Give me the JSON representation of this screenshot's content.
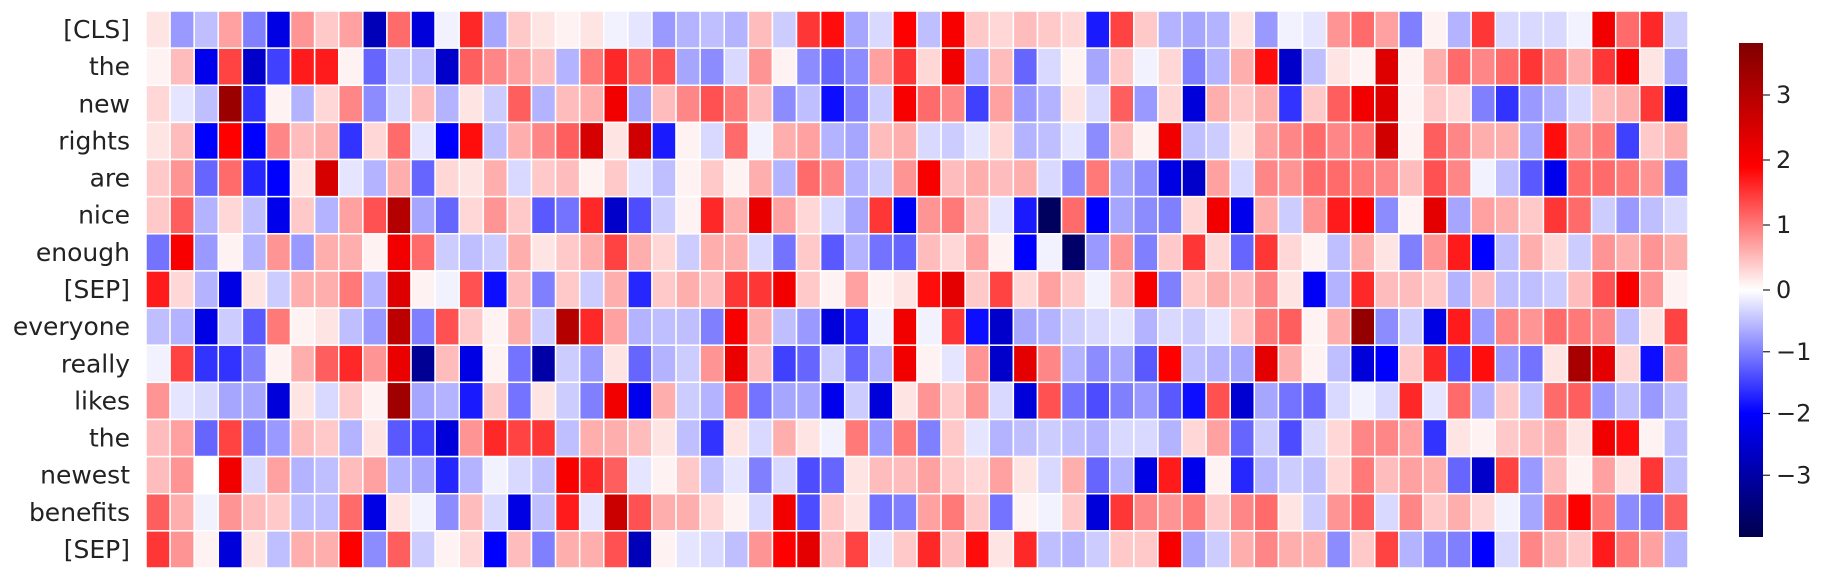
{
  "chart_data": {
    "type": "heatmap",
    "title": "",
    "xlabel": "",
    "ylabel": "",
    "rows": [
      "[CLS]",
      "the",
      "new",
      "rights",
      "are",
      "nice",
      "enough",
      "[SEP]",
      "everyone",
      "really",
      "likes",
      "the",
      "newest",
      "benefits",
      "[SEP]"
    ],
    "n_columns": 64,
    "x_tick_labels": "none",
    "colormap": "seismic",
    "vmin": -4,
    "vmax": 3.8,
    "colorbar": {
      "ticks": [
        3,
        2,
        1,
        0,
        -1,
        -2,
        -3
      ],
      "tick_labels": [
        "3",
        "2",
        "1",
        "0",
        "−1",
        "−2",
        "−3"
      ],
      "position": "right"
    },
    "values": [
      [
        0.2,
        -0.8,
        -0.5,
        0.7,
        -1.0,
        -2.3,
        0.8,
        0.4,
        0.7,
        -2.8,
        1.1,
        -2.4,
        -0.1,
        1.6,
        -0.7,
        0.4,
        0.2,
        0.1,
        0.2,
        -0.1,
        -0.2,
        -0.8,
        -0.6,
        -0.5,
        -0.6,
        0.5,
        -0.4,
        1.5,
        1.8,
        -0.7,
        -0.3,
        1.9,
        -0.5,
        2.0,
        0.4,
        0.3,
        0.5,
        0.4,
        0.3,
        -1.8,
        1.4,
        0.4,
        -0.6,
        -0.7,
        -0.6,
        0.2,
        -0.8,
        -0.1,
        -0.2,
        0.8,
        1.1,
        0.7,
        -1.0,
        0.1,
        -0.6,
        1.5,
        -0.3,
        -0.3,
        -0.3,
        -0.1,
        2.1,
        1.1,
        1.6,
        -0.4
      ],
      [
        0.1,
        0.5,
        -2.2,
        1.4,
        -2.6,
        -1.5,
        1.7,
        1.7,
        0.1,
        -1.2,
        -0.4,
        -0.5,
        -2.6,
        1.2,
        0.9,
        0.7,
        0.5,
        -0.6,
        1.0,
        1.6,
        1.1,
        1.3,
        -0.7,
        -0.9,
        -0.3,
        0.8,
        0.1,
        -0.9,
        -1.2,
        -0.9,
        0.7,
        1.5,
        0.3,
        2.1,
        -0.6,
        0.5,
        -1.2,
        -0.3,
        0.1,
        -0.7,
        0.4,
        -0.1,
        0.3,
        -1.0,
        -0.6,
        0.6,
        1.8,
        -2.6,
        -0.5,
        0.2,
        0.1,
        2.4,
        0.1,
        0.6,
        1.1,
        0.9,
        1.1,
        1.5,
        1.0,
        0.6,
        1.5,
        2.0,
        0.2,
        -0.7
      ],
      [
        0.3,
        -0.2,
        -0.5,
        3.4,
        -1.6,
        0.1,
        -0.6,
        0.3,
        0.9,
        -0.9,
        -0.3,
        0.5,
        -0.6,
        0.2,
        -0.4,
        1.2,
        -0.6,
        0.5,
        0.6,
        2.1,
        -0.7,
        0.5,
        0.9,
        1.3,
        1.0,
        0.5,
        -0.9,
        -0.5,
        -1.9,
        -1.0,
        -0.4,
        2.0,
        1.1,
        0.9,
        -1.5,
        0.7,
        -0.8,
        -0.6,
        0.2,
        -0.3,
        1.2,
        -0.8,
        0.3,
        -2.4,
        0.6,
        0.4,
        0.6,
        -1.6,
        0.4,
        1.2,
        2.1,
        2.4,
        0.1,
        0.4,
        0.3,
        -1.0,
        -1.6,
        -0.8,
        -0.6,
        -0.3,
        0.5,
        0.6,
        1.5,
        -2.3
      ],
      [
        0.2,
        0.5,
        -2.0,
        1.9,
        -2.0,
        0.9,
        0.5,
        0.6,
        -1.6,
        0.3,
        1.1,
        -0.2,
        -2.0,
        1.8,
        -0.5,
        0.6,
        0.9,
        1.2,
        2.5,
        0.2,
        2.6,
        -1.8,
        0.1,
        -0.3,
        1.1,
        -0.1,
        0.6,
        0.7,
        -0.6,
        -0.7,
        0.5,
        0.6,
        -0.3,
        -0.4,
        -0.2,
        0.3,
        -0.6,
        -0.5,
        -0.2,
        -0.9,
        0.5,
        0.1,
        2.1,
        -0.5,
        -0.4,
        0.2,
        0.7,
        0.9,
        1.1,
        0.9,
        1.0,
        2.6,
        0.1,
        1.2,
        0.9,
        0.6,
        0.6,
        -0.7,
        1.8,
        0.8,
        1.0,
        -1.5,
        0.4,
        0.6
      ],
      [
        0.4,
        0.8,
        -1.2,
        1.1,
        -1.7,
        -2.0,
        0.2,
        2.5,
        -0.2,
        -0.6,
        0.6,
        -1.2,
        0.3,
        0.2,
        0.6,
        -0.3,
        0.4,
        0.5,
        0.1,
        0.4,
        -0.2,
        -0.5,
        0.1,
        0.4,
        0.1,
        0.6,
        -0.6,
        1.1,
        0.9,
        -0.6,
        -0.4,
        0.8,
        2.0,
        0.5,
        0.6,
        0.5,
        0.6,
        -0.3,
        -0.9,
        1.0,
        -0.7,
        -0.9,
        -2.3,
        -2.6,
        0.7,
        -0.3,
        0.9,
        0.8,
        1.1,
        1.1,
        1.0,
        0.9,
        0.5,
        1.3,
        0.9,
        -0.1,
        -0.5,
        -1.3,
        -2.2,
        1.1,
        1.1,
        1.0,
        0.8,
        -1.0
      ],
      [
        0.4,
        1.2,
        -0.6,
        0.3,
        -0.5,
        -2.2,
        0.4,
        -0.6,
        0.7,
        1.3,
        3.0,
        -0.7,
        -1.2,
        0.3,
        0.8,
        0.4,
        -1.3,
        -1.1,
        1.6,
        -2.6,
        -1.4,
        -0.4,
        0.1,
        1.6,
        0.6,
        2.2,
        0.7,
        0.3,
        -0.3,
        -0.7,
        1.5,
        -2.1,
        0.8,
        1.0,
        0.5,
        -0.2,
        -1.8,
        -3.8,
        1.1,
        -2.0,
        -0.7,
        -0.9,
        -1.0,
        0.3,
        2.1,
        -2.2,
        0.6,
        -0.4,
        0.8,
        1.7,
        1.9,
        -0.9,
        0.1,
        2.3,
        -0.7,
        0.7,
        0.6,
        0.4,
        1.5,
        1.1,
        -0.4,
        -0.8,
        -0.5,
        -0.3
      ],
      [
        -1.1,
        2.0,
        -0.8,
        0.1,
        -0.6,
        0.8,
        -0.8,
        0.6,
        0.6,
        0.1,
        2.1,
        1.1,
        -0.4,
        -0.5,
        -0.4,
        0.6,
        0.2,
        0.4,
        0.6,
        1.4,
        0.6,
        0.3,
        -0.4,
        0.6,
        0.6,
        -0.3,
        -1.1,
        0.4,
        -1.3,
        -0.6,
        -1.1,
        -1.2,
        0.5,
        0.3,
        0.7,
        0.1,
        -2.0,
        -0.1,
        -3.7,
        -0.8,
        0.8,
        -1.0,
        0.4,
        1.5,
        0.3,
        -1.2,
        1.5,
        0.3,
        0.1,
        -0.5,
        0.6,
        0.2,
        -1.0,
        0.8,
        1.7,
        -2.0,
        -0.5,
        0.6,
        0.3,
        -0.4,
        0.8,
        0.6,
        0.8,
        0.6
      ],
      [
        1.7,
        0.3,
        -0.6,
        -2.3,
        0.2,
        -0.4,
        0.6,
        0.6,
        1.0,
        -0.6,
        2.4,
        0.1,
        -0.1,
        1.3,
        -1.9,
        0.5,
        -1.0,
        0.4,
        -0.4,
        0.6,
        -1.7,
        0.4,
        0.6,
        0.5,
        1.5,
        1.5,
        2.1,
        0.4,
        0.1,
        0.7,
        0.1,
        0.2,
        1.8,
        2.3,
        0.4,
        1.4,
        0.3,
        0.7,
        0.4,
        -0.1,
        0.5,
        2.0,
        -1.0,
        0.4,
        0.6,
        0.5,
        0.9,
        0.2,
        -2.1,
        -0.6,
        1.6,
        0.5,
        0.5,
        0.4,
        -0.6,
        0.5,
        -0.5,
        -0.5,
        -0.4,
        0.5,
        1.3,
        2.0,
        0.8,
        0.1
      ],
      [
        -0.5,
        -0.6,
        -2.3,
        -0.4,
        -1.3,
        1.0,
        0.1,
        0.2,
        -0.5,
        -0.8,
        2.9,
        -1.0,
        1.3,
        0.4,
        0.1,
        0.6,
        -0.4,
        3.0,
        1.6,
        0.7,
        -0.6,
        -0.5,
        -0.5,
        -1.0,
        2.0,
        0.6,
        -0.5,
        -0.8,
        -2.4,
        -1.7,
        -0.1,
        2.1,
        -0.1,
        1.5,
        -1.9,
        -2.6,
        -0.7,
        -0.6,
        -0.4,
        -0.3,
        -0.2,
        -0.6,
        -0.3,
        -0.4,
        -0.2,
        0.4,
        1.0,
        1.2,
        0.1,
        0.6,
        3.5,
        -0.9,
        -0.4,
        -2.3,
        1.7,
        -0.8,
        0.9,
        0.8,
        1.1,
        1.0,
        0.9,
        -0.5,
        0.2,
        1.4
      ],
      [
        -0.1,
        1.4,
        -1.6,
        -1.6,
        -1.0,
        0.1,
        0.6,
        1.2,
        1.6,
        0.8,
        2.2,
        -3.2,
        0.5,
        -2.3,
        0.1,
        -1.1,
        -3.0,
        -0.4,
        -0.8,
        0.2,
        -1.2,
        -0.6,
        -0.4,
        0.8,
        2.2,
        0.5,
        -1.5,
        -1.2,
        -0.4,
        -1.2,
        -0.6,
        2.1,
        0.1,
        -0.2,
        0.8,
        -2.6,
        2.3,
        0.9,
        -0.6,
        -0.9,
        -0.7,
        -1.3,
        1.9,
        -0.5,
        -0.6,
        -0.7,
        2.3,
        0.6,
        0.1,
        -0.5,
        -2.4,
        -2.0,
        0.4,
        1.6,
        -1.3,
        1.8,
        -0.8,
        -1.1,
        0.2,
        3.2,
        2.3,
        0.3,
        -1.9,
        0.8
      ],
      [
        0.8,
        -0.2,
        -0.3,
        -0.7,
        -0.7,
        -2.4,
        0.2,
        -0.3,
        0.4,
        0.1,
        3.3,
        -0.7,
        -0.6,
        -1.8,
        0.4,
        -1.1,
        0.2,
        -0.4,
        -1.0,
        2.1,
        -2.2,
        0.6,
        -0.4,
        -0.6,
        1.1,
        -1.1,
        -0.7,
        -0.7,
        -2.2,
        -0.4,
        -2.4,
        0.2,
        0.8,
        0.4,
        0.8,
        -0.3,
        -2.4,
        1.3,
        -1.1,
        -1.4,
        -1.0,
        -0.8,
        -1.3,
        -1.9,
        1.3,
        -2.5,
        -0.7,
        -1.1,
        -1.2,
        -0.3,
        -0.1,
        -0.3,
        1.6,
        -0.2,
        1.1,
        -0.6,
        0.4,
        -0.5,
        1.1,
        1.2,
        -0.8,
        -0.5,
        -0.8,
        -0.5
      ],
      [
        0.5,
        0.7,
        -1.2,
        1.4,
        -1.0,
        -0.8,
        0.5,
        0.4,
        -0.6,
        0.2,
        -1.3,
        -1.5,
        -2.4,
        0.8,
        1.6,
        1.4,
        1.5,
        -0.5,
        0.6,
        0.6,
        0.5,
        0.2,
        -0.5,
        -1.6,
        0.2,
        -0.3,
        0.6,
        0.2,
        -0.1,
        1.0,
        -0.8,
        1.0,
        -1.0,
        0.4,
        -0.2,
        -0.6,
        -0.5,
        -0.4,
        -0.5,
        -0.6,
        -0.3,
        -0.3,
        -0.6,
        0.3,
        0.7,
        -1.2,
        -0.4,
        -1.4,
        -0.3,
        0.3,
        0.9,
        0.9,
        0.7,
        -1.6,
        0.2,
        0.1,
        0.4,
        0.5,
        0.6,
        0.2,
        2.1,
        1.8,
        0.1,
        -0.5
      ],
      [
        0.5,
        0.8,
        0.0,
        2.1,
        -0.3,
        0.7,
        -0.6,
        -0.5,
        0.5,
        0.7,
        -0.6,
        -0.7,
        -1.7,
        -0.6,
        -0.1,
        -0.3,
        -0.5,
        2.0,
        1.6,
        1.2,
        -0.2,
        0.1,
        0.4,
        -0.5,
        -0.2,
        -1.0,
        -0.3,
        -1.4,
        -1.2,
        0.2,
        0.5,
        0.5,
        0.7,
        0.4,
        0.3,
        0.7,
        0.2,
        -0.3,
        0.6,
        -1.2,
        -0.6,
        -2.3,
        1.7,
        -2.2,
        0.1,
        -1.7,
        -0.6,
        -0.4,
        -0.5,
        0.3,
        1.0,
        0.5,
        0.7,
        0.6,
        -1.2,
        -2.6,
        1.4,
        -0.8,
        0.5,
        0.1,
        0.7,
        0.2,
        1.5,
        -0.5
      ],
      [
        1.2,
        0.6,
        -0.1,
        0.8,
        0.5,
        0.4,
        -0.5,
        -0.5,
        1.1,
        -2.3,
        0.2,
        -0.1,
        -0.9,
        0.5,
        -0.3,
        -2.3,
        -0.5,
        1.7,
        -0.2,
        2.7,
        1.3,
        0.6,
        0.6,
        0.3,
        0.1,
        -0.3,
        2.1,
        -1.4,
        0.4,
        0.2,
        -1.1,
        -1.0,
        0.7,
        1.0,
        0.4,
        -1.1,
        0.1,
        -0.1,
        0.4,
        -2.4,
        1.5,
        0.9,
        0.8,
        1.0,
        0.4,
        0.9,
        1.1,
        0.2,
        -0.4,
        0.8,
        1.2,
        -0.3,
        0.9,
        0.4,
        0.6,
        0.3,
        -0.1,
        -0.7,
        1.1,
        1.9,
        1.0,
        -0.9,
        -1.0,
        1.2
      ],
      [
        1.5,
        0.8,
        0.1,
        -2.4,
        0.2,
        -0.5,
        0.6,
        0.6,
        1.9,
        -0.9,
        1.2,
        -0.4,
        0.1,
        0.3,
        -2.0,
        0.5,
        -1.0,
        0.6,
        0.6,
        1.3,
        -2.8,
        0.1,
        -0.2,
        -0.3,
        -0.5,
        0.8,
        1.9,
        2.3,
        0.5,
        1.4,
        -0.2,
        0.4,
        1.6,
        0.5,
        1.8,
        0.2,
        1.6,
        -0.5,
        -0.6,
        -0.4,
        0.4,
        0.4,
        2.0,
        -0.7,
        -0.4,
        0.6,
        0.9,
        0.6,
        0.6,
        -0.9,
        0.4,
        1.4,
        -0.6,
        -0.9,
        -1.0,
        -2.0,
        -0.3,
        0.9,
        0.6,
        0.4,
        1.7,
        1.0,
        0.7,
        -0.6
      ]
    ]
  }
}
